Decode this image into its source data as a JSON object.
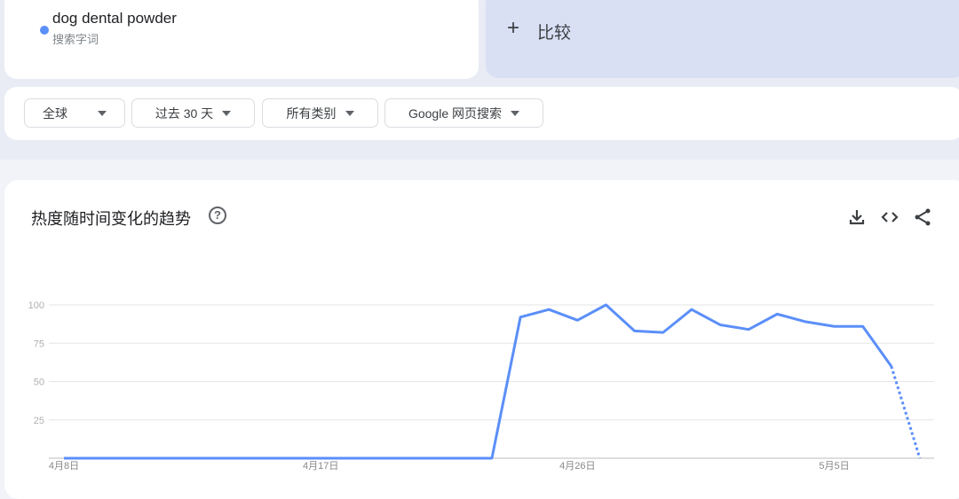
{
  "search_term": {
    "label": "dog dental powder",
    "type": "搜索字词",
    "color": "#5b8ff9"
  },
  "compare": {
    "label": "比较"
  },
  "filters": {
    "region": "全球",
    "time": "过去 30 天",
    "category": "所有类别",
    "search_type": "Google 网页搜索"
  },
  "chart_card": {
    "title": "热度随时间变化的趋势",
    "help_icon": "?",
    "actions": [
      "download-icon",
      "embed-code-icon",
      "share-icon"
    ]
  },
  "chart_data": {
    "type": "line",
    "title": "",
    "xlabel": "",
    "ylabel": "",
    "ylim": [
      0,
      100
    ],
    "yticks": [
      25,
      50,
      75,
      100
    ],
    "grid": true,
    "x": [
      "4月8日",
      "4月9日",
      "4月10日",
      "4月11日",
      "4月12日",
      "4月13日",
      "4月14日",
      "4月15日",
      "4月16日",
      "4月17日",
      "4月18日",
      "4月19日",
      "4月20日",
      "4月21日",
      "4月22日",
      "4月23日",
      "4月24日",
      "4月25日",
      "4月26日",
      "4月27日",
      "4月28日",
      "4月29日",
      "4月30日",
      "5月1日",
      "5月2日",
      "5月3日",
      "5月4日",
      "5月5日",
      "5月6日",
      "5月7日",
      "5月8日"
    ],
    "xticks": [
      "4月8日",
      "4月17日",
      "4月26日",
      "5月5日"
    ],
    "series": [
      {
        "name": "dog dental powder",
        "color": "#5b8ff9",
        "values": [
          0,
          0,
          0,
          0,
          0,
          0,
          0,
          0,
          0,
          0,
          0,
          0,
          0,
          0,
          0,
          0,
          92,
          97,
          90,
          100,
          83,
          82,
          97,
          87,
          84,
          94,
          89,
          86,
          86,
          60,
          0
        ],
        "partial_from_index": 29
      }
    ]
  }
}
